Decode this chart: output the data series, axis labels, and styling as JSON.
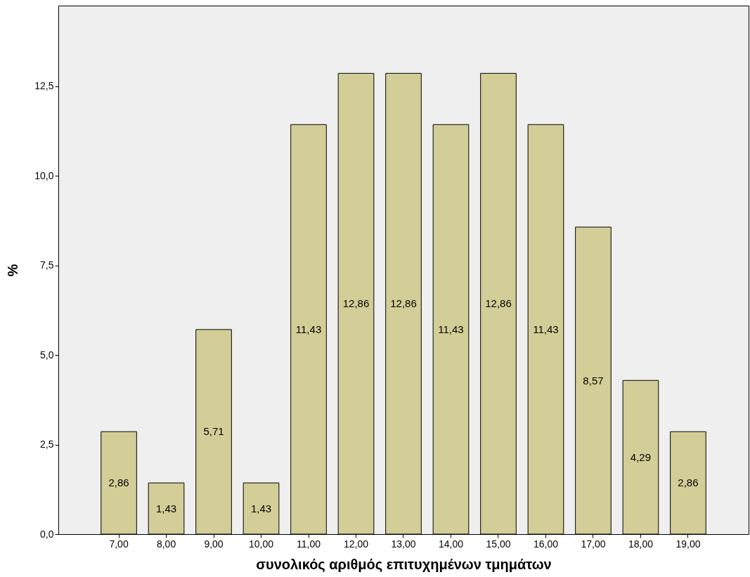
{
  "chart_data": {
    "type": "bar",
    "xlabel": "συνολικός αριθμός επιτυχημένων τμημάτων",
    "ylabel": "%",
    "categories": [
      "7,00",
      "8,00",
      "9,00",
      "10,00",
      "11,00",
      "12,00",
      "13,00",
      "14,00",
      "15,00",
      "16,00",
      "17,00",
      "18,00",
      "19,00"
    ],
    "values": [
      2.86,
      1.43,
      5.71,
      1.43,
      11.43,
      12.86,
      12.86,
      11.43,
      12.86,
      11.43,
      8.57,
      4.29,
      2.86
    ],
    "value_labels": [
      "2,86",
      "1,43",
      "5,71",
      "1,43",
      "11,43",
      "12,86",
      "12,86",
      "11,43",
      "12,86",
      "11,43",
      "8,57",
      "4,29",
      "2,86"
    ],
    "color": "#d3ce97",
    "ylim": [
      0,
      14.75
    ],
    "yticks": [
      {
        "value": 0,
        "label": "0,0"
      },
      {
        "value": 2.5,
        "label": "2,5"
      },
      {
        "value": 5,
        "label": "5,0"
      },
      {
        "value": 7.5,
        "label": "7,5"
      },
      {
        "value": 10,
        "label": "10,0"
      },
      {
        "value": 12.5,
        "label": "12,5"
      }
    ],
    "grid": false
  }
}
